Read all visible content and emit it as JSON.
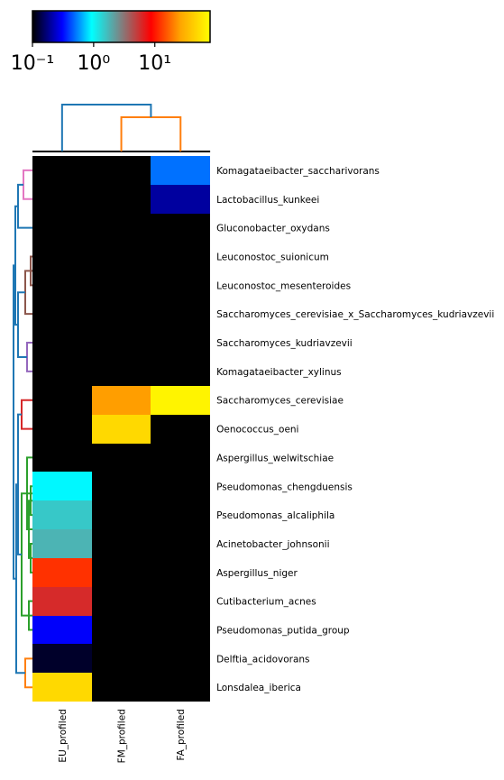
{
  "chart_data": {
    "type": "heatmap",
    "rows": [
      "Komagataeibacter_saccharivorans",
      "Lactobacillus_kunkeei",
      "Gluconobacter_oxydans",
      "Leuconostoc_suionicum",
      "Leuconostoc_mesenteroides",
      "Saccharomyces_cerevisiae_x_Saccharomyces_kudriavzevii",
      "Saccharomyces_kudriavzevii",
      "Komagataeibacter_xylinus",
      "Saccharomyces_cerevisiae",
      "Oenococcus_oeni",
      "Aspergillus_welwitschiae",
      "Pseudomonas_chengduensis",
      "Pseudomonas_alcaliphila",
      "Acinetobacter_johnsonii",
      "Aspergillus_niger",
      "Cutibacterium_acnes",
      "Pseudomonas_putida_group",
      "Delftia_acidovorans",
      "Lonsdalea_iberica"
    ],
    "columns": [
      "EU_profiled",
      "FM_profiled",
      "FA_profiled"
    ],
    "values": [
      [
        0,
        0,
        0.5
      ],
      [
        0,
        0,
        0.2
      ],
      [
        0,
        0,
        0
      ],
      [
        0,
        0,
        0
      ],
      [
        0,
        0,
        0
      ],
      [
        0,
        0,
        0
      ],
      [
        0,
        0,
        0
      ],
      [
        0,
        0,
        0
      ],
      [
        0,
        25,
        70
      ],
      [
        0,
        50,
        0
      ],
      [
        0,
        0,
        0
      ],
      [
        0.9,
        0,
        0
      ],
      [
        1.5,
        0,
        0
      ],
      [
        1.8,
        0,
        0
      ],
      [
        12,
        0,
        0
      ],
      [
        6,
        0,
        0
      ],
      [
        0.3,
        0,
        0
      ],
      [
        0.12,
        0,
        0
      ],
      [
        50,
        0,
        0
      ]
    ],
    "notes_on_values": "",
    "colorbar": {
      "scale": "log",
      "range": [
        0.1,
        80
      ],
      "tick_labels": [
        "10^{-1}",
        "10^{0}",
        "10^{1}"
      ],
      "tick_values": [
        0.1,
        1,
        10
      ],
      "colormap": [
        "#000000",
        "#0000ff",
        "#00ffff",
        "#808080",
        "#ff0000",
        "#ffa500",
        "#ffff00"
      ]
    },
    "zero_color": "#000000",
    "column_dendrogram": {
      "colors": [
        "#1f77b4",
        "#ff7f0e"
      ]
    },
    "row_dendrogram": {
      "colors": [
        "#e377c2",
        "#1f77b4",
        "#8c564b",
        "#9467bd",
        "#d62728",
        "#2ca02c",
        "#ff7f0e"
      ]
    },
    "title": "",
    "xlabel": "",
    "ylabel": ""
  }
}
